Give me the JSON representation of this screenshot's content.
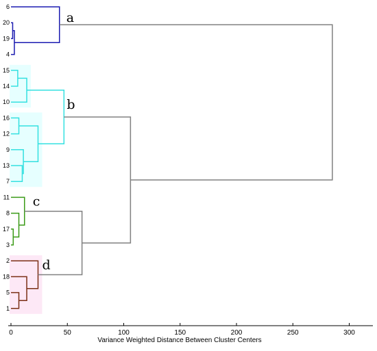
{
  "chart_data": {
    "type": "dendrogram",
    "title": "",
    "xlabel": "Variance Weighted Distance Between Cluster Centers",
    "ylabel": "",
    "xlim": [
      -3,
      330
    ],
    "xticks": [
      0,
      50,
      100,
      150,
      200,
      250,
      300
    ],
    "grid": false,
    "leaves": [
      "6",
      "20",
      "19",
      "4",
      "15",
      "14",
      "10",
      "16",
      "12",
      "9",
      "13",
      "7",
      "11",
      "8",
      "17",
      "3",
      "2",
      "18",
      "5",
      "1"
    ],
    "clusters": [
      {
        "name": "a",
        "color": "#1a1ab0"
      },
      {
        "name": "b",
        "color": "#33e0e0"
      },
      {
        "name": "c",
        "color": "#3a9a16"
      },
      {
        "name": "d",
        "color": "#7a2e14"
      }
    ],
    "link_color": "#808080",
    "merges": [
      {
        "id": "n1",
        "children": [
          "20",
          "19"
        ],
        "height": 1.5,
        "color": "#1a1ab0"
      },
      {
        "id": "n2",
        "children": [
          "n1",
          "4"
        ],
        "height": 3,
        "color": "#1a1ab0"
      },
      {
        "id": "n3",
        "children": [
          "6",
          "n2"
        ],
        "height": 43,
        "color": "#1a1ab0"
      },
      {
        "id": "n4",
        "children": [
          "15",
          "14"
        ],
        "height": 6,
        "color": "#33e0e0"
      },
      {
        "id": "n5",
        "children": [
          "n4",
          "10"
        ],
        "height": 14,
        "color": "#33e0e0"
      },
      {
        "id": "n6",
        "children": [
          "16",
          "12"
        ],
        "height": 7,
        "color": "#33e0e0"
      },
      {
        "id": "n7",
        "children": [
          "13",
          "7"
        ],
        "height": 10,
        "color": "#33e0e0"
      },
      {
        "id": "n8",
        "children": [
          "9",
          "n7"
        ],
        "height": 11,
        "color": "#33e0e0"
      },
      {
        "id": "n9",
        "children": [
          "n6",
          "n8"
        ],
        "height": 24,
        "color": "#33e0e0"
      },
      {
        "id": "n10",
        "children": [
          "n5",
          "n9"
        ],
        "height": 47,
        "color": "#33e0e0"
      },
      {
        "id": "n11",
        "children": [
          "17",
          "3"
        ],
        "height": 2,
        "color": "#3a9a16"
      },
      {
        "id": "n12",
        "children": [
          "8",
          "n11"
        ],
        "height": 7,
        "color": "#3a9a16"
      },
      {
        "id": "n13",
        "children": [
          "11",
          "n12"
        ],
        "height": 12,
        "color": "#3a9a16"
      },
      {
        "id": "n14",
        "children": [
          "5",
          "1"
        ],
        "height": 7,
        "color": "#7a2e14"
      },
      {
        "id": "n15",
        "children": [
          "18",
          "n14"
        ],
        "height": 14,
        "color": "#7a2e14"
      },
      {
        "id": "n16",
        "children": [
          "2",
          "n15"
        ],
        "height": 24,
        "color": "#7a2e14"
      },
      {
        "id": "n17",
        "children": [
          "n13",
          "n16"
        ],
        "height": 63,
        "color": "#808080"
      },
      {
        "id": "n18",
        "children": [
          "n10",
          "n17"
        ],
        "height": 106,
        "color": "#808080"
      },
      {
        "id": "n19",
        "children": [
          "n3",
          "n18"
        ],
        "height": 285,
        "color": "#808080"
      }
    ],
    "annotations": [
      {
        "text": "a",
        "node": "n3"
      },
      {
        "text": "b",
        "node": "n10"
      },
      {
        "text": "c",
        "node": "n13"
      },
      {
        "text": "d",
        "node": "n16"
      }
    ],
    "highlight_colors": {
      "b": "#e6ffff",
      "d": "#fde8f6"
    }
  }
}
